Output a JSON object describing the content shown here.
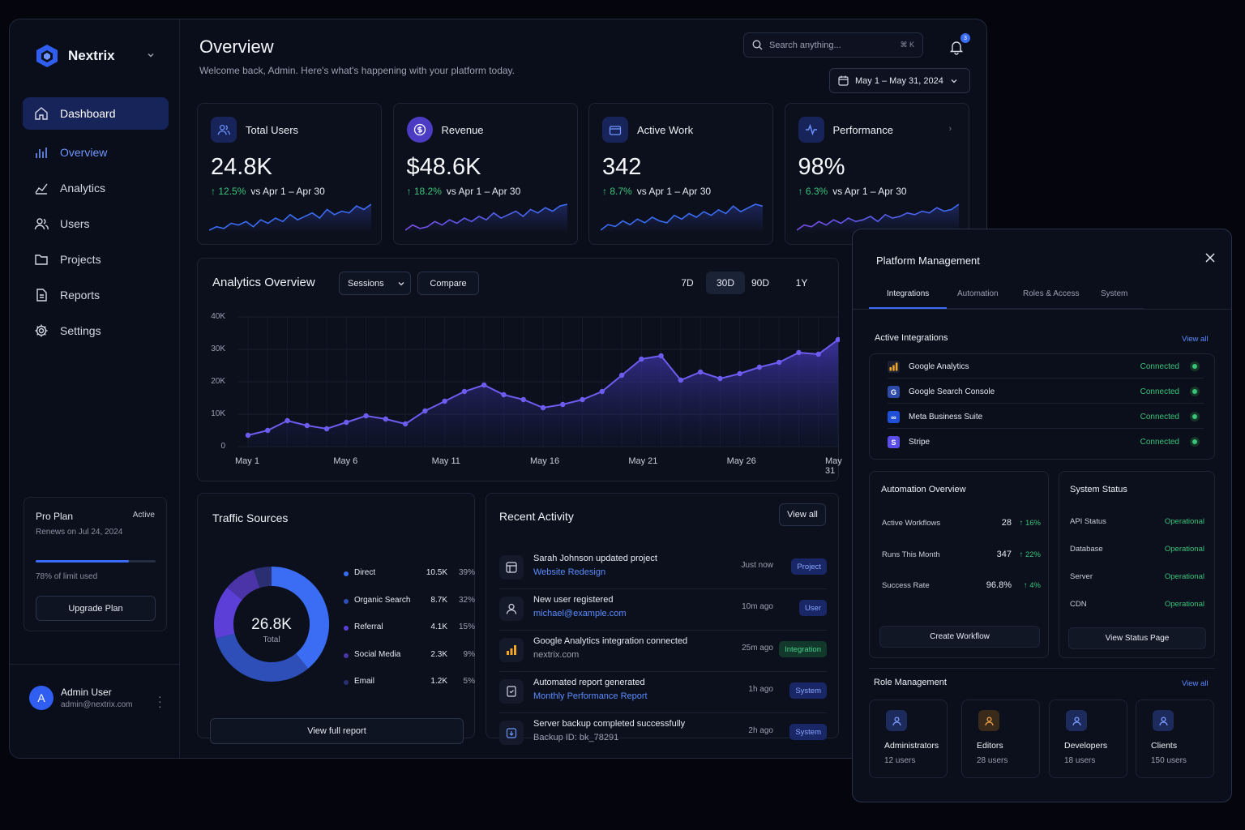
{
  "brand": {
    "name": "Nextrix"
  },
  "sidebar": {
    "items": [
      {
        "label": "Dashboard",
        "icon": "home-icon",
        "state": "active"
      },
      {
        "label": "Overview",
        "icon": "bar-chart-icon",
        "state": "sub"
      },
      {
        "label": "Analytics",
        "icon": "line-chart-icon",
        "state": ""
      },
      {
        "label": "Users",
        "icon": "users-icon",
        "state": ""
      },
      {
        "label": "Projects",
        "icon": "folder-icon",
        "state": ""
      },
      {
        "label": "Reports",
        "icon": "file-text-icon",
        "state": ""
      },
      {
        "label": "Settings",
        "icon": "gear-icon",
        "state": ""
      }
    ],
    "plan": {
      "title": "Pro Plan",
      "badge": "Active",
      "renew": "Renews on Jul 24, 2024",
      "usage_label": "78% of limit used",
      "usage_fraction": 0.78,
      "button": "Upgrade Plan"
    },
    "user": {
      "initial": "A",
      "name": "Admin User",
      "email": "admin@nextrix.com"
    }
  },
  "header": {
    "title": "Overview",
    "subtitle": "Welcome back, Admin. Here's what's happening with your platform today.",
    "search_placeholder": "Search anything...",
    "search_shortcut": "⌘ K",
    "notifications": "3",
    "date_range": "May 1 – May 31, 2024"
  },
  "kpis": [
    {
      "label": "Total Users",
      "value": "24.8K",
      "delta": "12.5%",
      "compare": "vs Apr 1 – Apr 30",
      "icon": "users-icon",
      "spark": [
        3,
        5,
        4,
        7,
        6,
        8,
        5,
        9,
        7,
        10,
        8,
        12,
        9,
        11,
        13,
        10,
        15,
        12,
        14,
        13,
        17,
        15,
        18
      ]
    },
    {
      "label": "Revenue",
      "value": "$48.6K",
      "delta": "18.2%",
      "compare": "vs Apr 1 – Apr 30",
      "icon": "dollar-icon",
      "spark": [
        3,
        6,
        4,
        5,
        8,
        6,
        9,
        7,
        10,
        8,
        11,
        9,
        13,
        10,
        12,
        14,
        11,
        15,
        13,
        16,
        14,
        17,
        18
      ]
    },
    {
      "label": "Active Work",
      "value": "342",
      "delta": "8.7%",
      "compare": "vs Apr 1 – Apr 30",
      "icon": "briefcase-icon",
      "spark": [
        2,
        5,
        4,
        7,
        5,
        8,
        6,
        9,
        7,
        6,
        10,
        8,
        11,
        9,
        12,
        10,
        13,
        11,
        15,
        12,
        14,
        16,
        15
      ]
    },
    {
      "label": "Performance",
      "value": "98%",
      "delta": "6.3%",
      "compare": "vs Apr 1 – Apr 30",
      "icon": "pulse-icon",
      "spark": [
        3,
        6,
        5,
        8,
        6,
        9,
        7,
        10,
        8,
        9,
        11,
        8,
        12,
        10,
        11,
        13,
        12,
        14,
        13,
        16,
        14,
        15,
        18
      ]
    }
  ],
  "analytics": {
    "title": "Analytics Overview",
    "metric": "Sessions",
    "compare_label": "Compare",
    "ranges": [
      "7D",
      "30D",
      "90D",
      "1Y"
    ],
    "active_range": "30D"
  },
  "chart_data": {
    "type": "area",
    "title": "Analytics Overview",
    "x": [
      "May 1",
      "May 2",
      "May 3",
      "May 4",
      "May 5",
      "May 6",
      "May 7",
      "May 8",
      "May 9",
      "May 10",
      "May 11",
      "May 12",
      "May 13",
      "May 14",
      "May 15",
      "May 16",
      "May 17",
      "May 18",
      "May 19",
      "May 20",
      "May 21",
      "May 22",
      "May 23",
      "May 24",
      "May 25",
      "May 26",
      "May 27",
      "May 28",
      "May 29",
      "May 30",
      "May 31"
    ],
    "series": [
      {
        "values": [
          3500,
          5000,
          8000,
          6500,
          5500,
          7500,
          9500,
          8500,
          7000,
          11000,
          14000,
          17000,
          19000,
          16000,
          14500,
          12000,
          13000,
          14500,
          17000,
          22000,
          27000,
          28000,
          20500,
          23000,
          21000,
          22500,
          24500,
          26000,
          29000,
          28500,
          33000
        ]
      }
    ],
    "xticks": [
      "May 1",
      "May 6",
      "May 11",
      "May 16",
      "May 21",
      "May 26",
      "May 31"
    ],
    "yticks": [
      "0",
      "10K",
      "20K",
      "30K",
      "40K"
    ],
    "ylim": [
      0,
      40000
    ],
    "grid": true,
    "color": "#5b4de8"
  },
  "traffic": {
    "title": "Traffic Sources",
    "total_value": "26.8K",
    "total_label": "Total",
    "button": "View full report",
    "sources": [
      {
        "name": "Direct",
        "value": "10.5K",
        "pct": "39%",
        "share": 39,
        "color": "#3a6cf4"
      },
      {
        "name": "Organic Search",
        "value": "8.7K",
        "pct": "32%",
        "share": 32,
        "color": "#2f4fb8"
      },
      {
        "name": "Referral",
        "value": "4.1K",
        "pct": "15%",
        "share": 15,
        "color": "#5b3fd6"
      },
      {
        "name": "Social Media",
        "value": "2.3K",
        "pct": "9%",
        "share": 9,
        "color": "#4a34a8"
      },
      {
        "name": "Email",
        "value": "1.2K",
        "pct": "5%",
        "share": 5,
        "color": "#2a2f72"
      }
    ]
  },
  "activity": {
    "title": "Recent Activity",
    "view_all": "View all",
    "items": [
      {
        "title": "Sarah Johnson updated project",
        "sub": "Website Redesign",
        "time": "Just now",
        "tag": "Project",
        "tag_style": "blue",
        "icon": "project-icon"
      },
      {
        "title": "New user registered",
        "sub": "michael@example.com",
        "time": "10m ago",
        "tag": "User",
        "tag_style": "blue",
        "icon": "user-icon"
      },
      {
        "title": "Google Analytics integration connected",
        "sub": "nextrix.com",
        "time": "25m ago",
        "tag": "Integration",
        "tag_style": "green",
        "icon": "analytics-icon"
      },
      {
        "title": "Automated report generated",
        "sub": "Monthly Performance Report",
        "time": "1h ago",
        "tag": "System",
        "tag_style": "blue",
        "icon": "report-icon"
      },
      {
        "title": "Server backup completed successfully",
        "sub": "Backup ID: bk_78291",
        "time": "2h ago",
        "tag": "System",
        "tag_style": "blue",
        "icon": "backup-icon"
      }
    ]
  },
  "modal": {
    "title": "Platform Management",
    "tabs": [
      "Integrations",
      "Automation",
      "Roles & Access",
      "System"
    ],
    "integrations_title": "Active Integrations",
    "integrations_link": "View all",
    "integrations": [
      {
        "name": "Google Analytics",
        "status": "Connected",
        "icon": "google-analytics-icon",
        "color": "#1c2030",
        "glyph": "▮"
      },
      {
        "name": "Google Search Console",
        "status": "Connected",
        "icon": "search-console-icon",
        "color": "#2d4aa8",
        "glyph": "G"
      },
      {
        "name": "Meta Business Suite",
        "status": "Connected",
        "icon": "meta-icon",
        "color": "#1f4fd6",
        "glyph": "∞"
      },
      {
        "name": "Stripe",
        "status": "Connected",
        "icon": "stripe-icon",
        "color": "#5b4de8",
        "glyph": "S"
      }
    ],
    "automation": {
      "title": "Automation Overview",
      "rows": [
        {
          "label": "Active Workflows",
          "value": "28",
          "delta": "16%"
        },
        {
          "label": "Runs This Month",
          "value": "347",
          "delta": "22%"
        },
        {
          "label": "Success Rate",
          "value": "96.8%",
          "delta": "4%"
        }
      ],
      "button": "Create Workflow"
    },
    "system": {
      "title": "System Status",
      "rows": [
        {
          "label": "API Status",
          "status": "Operational"
        },
        {
          "label": "Database",
          "status": "Operational"
        },
        {
          "label": "Server",
          "status": "Operational"
        },
        {
          "label": "CDN",
          "status": "Operational"
        }
      ],
      "button": "View Status Page"
    },
    "roles_title": "Role Management",
    "roles_link": "View all",
    "roles": [
      {
        "name": "Administrators",
        "count": "12 users",
        "icon": "admin-role-icon",
        "color": "#1c2a5c"
      },
      {
        "name": "Editors",
        "count": "28 users",
        "icon": "editor-role-icon",
        "color": "#3a2a1a"
      },
      {
        "name": "Developers",
        "count": "18 users",
        "icon": "developer-role-icon",
        "color": "#1c2a5c"
      },
      {
        "name": "Clients",
        "count": "150 users",
        "icon": "client-role-icon",
        "color": "#1c2a5c"
      }
    ]
  }
}
